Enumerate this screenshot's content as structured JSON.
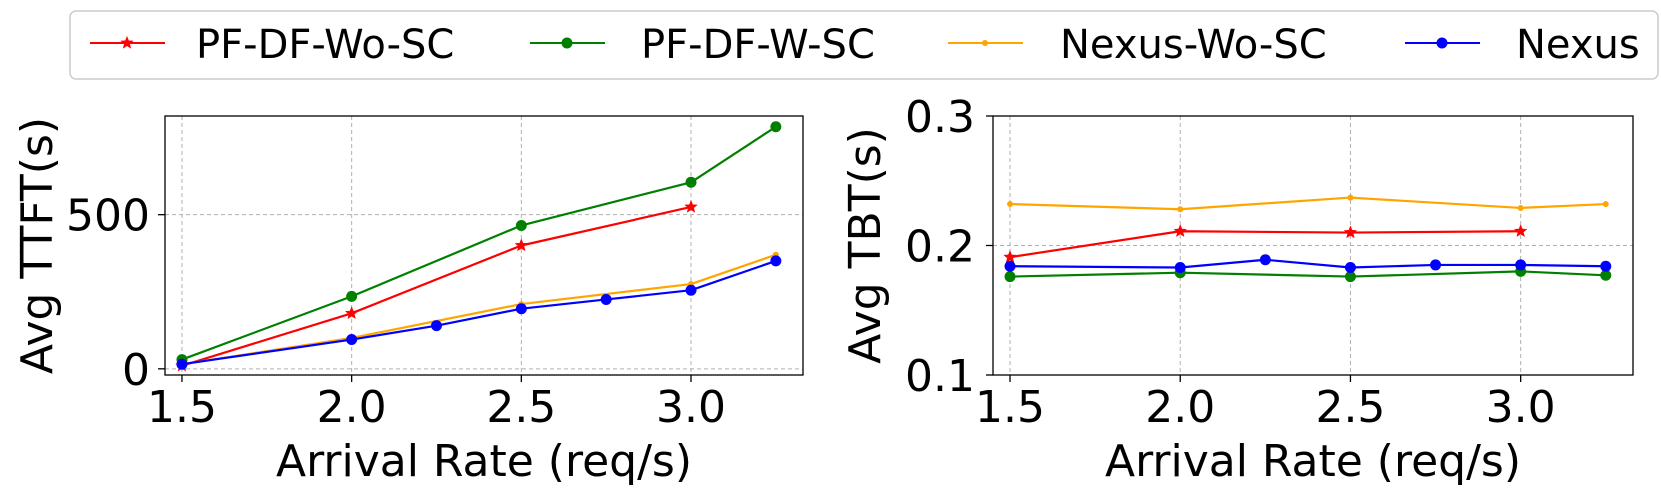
{
  "legend": [
    {
      "name": "PF-DF-Wo-SC",
      "color": "#ff0000",
      "marker": "star"
    },
    {
      "name": "PF-DF-W-SC",
      "color": "#008000",
      "marker": "circle"
    },
    {
      "name": "Nexus-Wo-SC",
      "color": "#ffa500",
      "marker": "small-circle"
    },
    {
      "name": "Nexus",
      "color": "#0000ff",
      "marker": "circle"
    }
  ],
  "chart_data": [
    {
      "type": "line",
      "xlabel": "Arrival Rate (req/s)",
      "ylabel": "Avg TTFT(s)",
      "xlim": [
        1.45,
        3.33
      ],
      "ylim": [
        -20,
        820
      ],
      "xticks": [
        1.5,
        2.0,
        2.5,
        3.0
      ],
      "xtick_labels": [
        "1.5",
        "2.0",
        "2.5",
        "3.0"
      ],
      "yticks": [
        0,
        500
      ],
      "ytick_labels": [
        "0",
        "500"
      ],
      "grid": true,
      "series": [
        {
          "name": "PF-DF-Wo-SC",
          "color": "#ff0000",
          "marker": "star",
          "x": [
            1.5,
            2.0,
            2.5,
            3.0
          ],
          "y": [
            10,
            180,
            400,
            525
          ]
        },
        {
          "name": "PF-DF-W-SC",
          "color": "#008000",
          "marker": "circle",
          "x": [
            1.5,
            2.0,
            2.5,
            3.0,
            3.25
          ],
          "y": [
            30,
            235,
            465,
            605,
            785
          ]
        },
        {
          "name": "Nexus-Wo-SC",
          "color": "#ffa500",
          "marker": "small-circle",
          "x": [
            1.5,
            2.0,
            2.5,
            3.0,
            3.25
          ],
          "y": [
            15,
            100,
            210,
            275,
            370
          ]
        },
        {
          "name": "Nexus",
          "color": "#0000ff",
          "marker": "circle",
          "x": [
            1.5,
            2.0,
            2.25,
            2.5,
            2.75,
            3.0,
            3.25
          ],
          "y": [
            15,
            95,
            140,
            195,
            225,
            255,
            350
          ]
        }
      ]
    },
    {
      "type": "line",
      "xlabel": "Arrival Rate (req/s)",
      "ylabel": "Avg TBT(s)",
      "xlim": [
        1.45,
        3.33
      ],
      "ylim": [
        0.1,
        0.3
      ],
      "xticks": [
        1.5,
        2.0,
        2.5,
        3.0
      ],
      "xtick_labels": [
        "1.5",
        "2.0",
        "2.5",
        "3.0"
      ],
      "yticks": [
        0.1,
        0.2,
        0.3
      ],
      "ytick_labels": [
        "0.1",
        "0.2",
        "0.3"
      ],
      "grid": true,
      "series": [
        {
          "name": "PF-DF-Wo-SC",
          "color": "#ff0000",
          "marker": "star",
          "x": [
            1.5,
            2.0,
            2.5,
            3.0
          ],
          "y": [
            0.191,
            0.211,
            0.21,
            0.211
          ]
        },
        {
          "name": "PF-DF-W-SC",
          "color": "#008000",
          "marker": "circle",
          "x": [
            1.5,
            2.0,
            2.5,
            3.0,
            3.25
          ],
          "y": [
            0.176,
            0.179,
            0.176,
            0.18,
            0.177
          ]
        },
        {
          "name": "Nexus-Wo-SC",
          "color": "#ffa500",
          "marker": "small-circle",
          "x": [
            1.5,
            2.0,
            2.5,
            3.0,
            3.25
          ],
          "y": [
            0.232,
            0.228,
            0.237,
            0.229,
            0.232
          ]
        },
        {
          "name": "Nexus",
          "color": "#0000ff",
          "marker": "circle",
          "x": [
            1.5,
            2.0,
            2.25,
            2.5,
            2.75,
            3.0,
            3.25
          ],
          "y": [
            0.184,
            0.183,
            0.189,
            0.183,
            0.185,
            0.185,
            0.184
          ]
        }
      ]
    }
  ]
}
